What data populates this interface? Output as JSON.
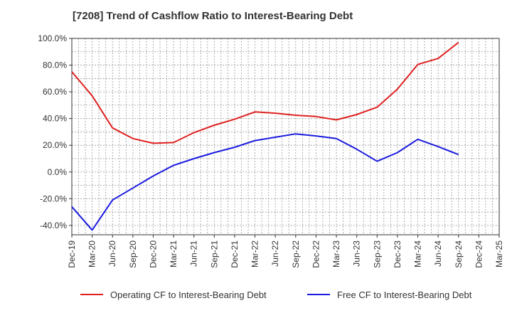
{
  "chart_data": {
    "type": "line",
    "title": "[7208]  Trend of Cashflow Ratio to Interest-Bearing Debt",
    "xlabel": "",
    "ylabel": "",
    "ylim": [
      -47,
      100
    ],
    "yticks": [
      100,
      80,
      60,
      40,
      20,
      0,
      -20,
      -40
    ],
    "ytick_labels": [
      "100.0%",
      "80.0%",
      "60.0%",
      "40.0%",
      "20.0%",
      "0.0%",
      "-20.0%",
      "-40.0%"
    ],
    "categories": [
      "Dec-19",
      "Mar-20",
      "Jun-20",
      "Sep-20",
      "Dec-20",
      "Mar-21",
      "Jun-21",
      "Sep-21",
      "Dec-21",
      "Mar-22",
      "Jun-22",
      "Sep-22",
      "Dec-22",
      "Mar-23",
      "Jun-23",
      "Sep-23",
      "Dec-23",
      "Mar-24",
      "Jun-24",
      "Sep-24",
      "Dec-24",
      "Mar-25"
    ],
    "series": [
      {
        "name": "Operating CF to Interest-Bearing Debt",
        "color": "#e02020",
        "values": [
          75,
          57,
          33,
          25,
          21.5,
          22,
          29.5,
          35,
          39.5,
          45,
          44,
          42.5,
          41.5,
          39,
          43,
          48.5,
          62,
          80.5,
          85,
          97,
          null,
          null
        ]
      },
      {
        "name": "Free CF to Interest-Bearing Debt",
        "color": "#1a1ae0",
        "values": [
          -26,
          -43.5,
          -21,
          -12,
          -3,
          5,
          10,
          14.5,
          18.5,
          23.5,
          26,
          28.5,
          27,
          25,
          17,
          8,
          14.5,
          24.5,
          19,
          13,
          null,
          null
        ]
      }
    ],
    "grid": true,
    "legend_position": "bottom"
  }
}
